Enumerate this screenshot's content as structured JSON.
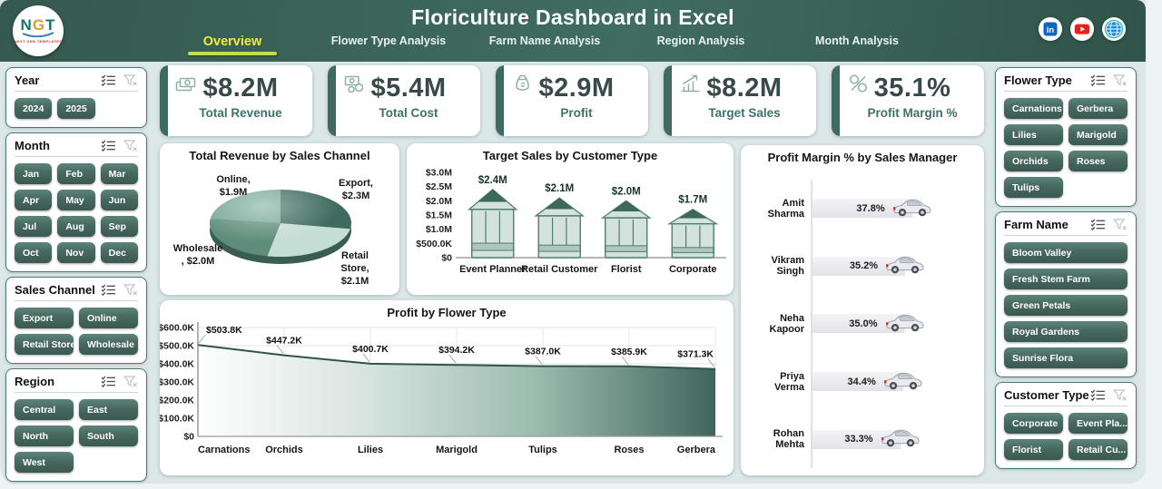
{
  "header": {
    "logo_text": "NGT",
    "logo_subtext": "NEXT GEN TEMPLATES",
    "title": "Floriculture Dashboard in Excel",
    "tabs": [
      {
        "label": "Overview",
        "active": true
      },
      {
        "label": "Flower Type Analysis",
        "active": false
      },
      {
        "label": "Farm Name Analysis",
        "active": false
      },
      {
        "label": "Region Analysis",
        "active": false
      },
      {
        "label": "Month Analysis",
        "active": false
      }
    ],
    "social": [
      {
        "icon": "linkedin-icon",
        "color": "#0a66c2"
      },
      {
        "icon": "youtube-icon",
        "color": "#e62117"
      },
      {
        "icon": "globe-icon",
        "color": "#1e88e5"
      }
    ]
  },
  "kpis": [
    {
      "icon": "revenue-icon",
      "value": "$8.2M",
      "label": "Total Revenue"
    },
    {
      "icon": "cost-icon",
      "value": "$5.4M",
      "label": "Total Cost"
    },
    {
      "icon": "profit-icon",
      "value": "$2.9M",
      "label": "Profit"
    },
    {
      "icon": "target-sales-icon",
      "value": "$8.2M",
      "label": "Target Sales"
    },
    {
      "icon": "profit-margin-icon",
      "value": "35.1%",
      "label": "Profit Margin %"
    }
  ],
  "slicers_left": [
    {
      "title": "Year",
      "columns": 3,
      "items": [
        "2024",
        "2025"
      ]
    },
    {
      "title": "Month",
      "columns": 3,
      "items": [
        "Jan",
        "Feb",
        "Mar",
        "Apr",
        "May",
        "Jun",
        "Jul",
        "Aug",
        "Sep",
        "Oct",
        "Nov",
        "Dec"
      ]
    },
    {
      "title": "Sales Channel",
      "columns": 2,
      "items": [
        "Export",
        "Online",
        "Retail Store",
        "Wholesale"
      ]
    },
    {
      "title": "Region",
      "columns": 2,
      "items": [
        "Central",
        "East",
        "North",
        "South",
        "West"
      ]
    }
  ],
  "slicers_right": [
    {
      "title": "Flower Type",
      "columns": 2,
      "items": [
        "Carnations",
        "Gerbera",
        "Lilies",
        "Marigold",
        "Orchids",
        "Roses",
        "Tulips"
      ]
    },
    {
      "title": "Farm Name",
      "columns": 1,
      "items": [
        "Bloom Valley",
        "Fresh Stem Farm",
        "Green Petals",
        "Royal Gardens",
        "Sunrise Flora"
      ]
    },
    {
      "title": "Customer Type",
      "columns": 2,
      "items": [
        "Corporate",
        "Event Pla...",
        "Florist",
        "Retail Cu..."
      ]
    }
  ],
  "chart_data": [
    {
      "type": "pie",
      "title": "Total Revenue by Sales Channel",
      "unit": "$M",
      "start_at_top_clockwise": true,
      "slices": [
        {
          "name": "Export",
          "value": 2.3,
          "label_lines": [
            "Export,",
            "$2.3M"
          ],
          "color": "#3f6b5e"
        },
        {
          "name": "Retail Store",
          "value": 2.1,
          "label_lines": [
            "Retail",
            "Store,",
            "$2.1M"
          ],
          "color": "#c5ded5"
        },
        {
          "name": "Wholesale",
          "value": 2.0,
          "label_lines": [
            "Wholesale",
            ", $2.0M"
          ],
          "color": "#5f8d7c"
        },
        {
          "name": "Online",
          "value": 1.9,
          "label_lines": [
            "Online,",
            "$1.9M"
          ],
          "color": "#74a796"
        }
      ]
    },
    {
      "type": "bar",
      "bar_style": "greenhouse-pictogram",
      "title": "Target Sales by Customer Type",
      "categories": [
        "Event Planner",
        "Retail Customer",
        "Florist",
        "Corporate"
      ],
      "values": [
        2.4,
        2.1,
        2.0,
        1.7
      ],
      "data_labels": [
        "$2.4M",
        "$2.1M",
        "$2.0M",
        "$1.7M"
      ],
      "ylim": [
        0,
        3
      ],
      "ytick_values": [
        0,
        0.5,
        1,
        1.5,
        2,
        2.5,
        3
      ],
      "ytick_labels": [
        "$0",
        "$500.0K",
        "$1.0M",
        "$1.5M",
        "$2.0M",
        "$2.5M",
        "$3.0M"
      ]
    },
    {
      "type": "bar",
      "orientation": "horizontal",
      "bar_style": "car-pictogram",
      "title": "Profit Margin % by Sales Manager",
      "categories": [
        "Amit Sharma",
        "Vikram Singh",
        "Neha Kapoor",
        "Priya Verma",
        "Rohan Mehta"
      ],
      "values": [
        37.8,
        35.2,
        35.0,
        34.4,
        33.3
      ],
      "data_labels": [
        "37.8%",
        "35.2%",
        "35.0%",
        "34.4%",
        "33.3%"
      ],
      "xlim": [
        0,
        40
      ]
    },
    {
      "type": "area",
      "title": "Profit by Flower Type",
      "categories": [
        "Carnations",
        "Orchids",
        "Lilies",
        "Marigold",
        "Tulips",
        "Roses",
        "Gerbera"
      ],
      "values": [
        503.8,
        447.2,
        400.7,
        394.2,
        387.0,
        385.9,
        371.3
      ],
      "data_labels": [
        "$503.8K",
        "$447.2K",
        "$400.7K",
        "$394.2K",
        "$387.0K",
        "$385.9K",
        "$371.3K"
      ],
      "unit": "K",
      "grid": true,
      "ylim": [
        0,
        600
      ],
      "ytick_values": [
        0,
        100,
        200,
        300,
        400,
        500,
        600
      ],
      "ytick_labels": [
        "$0",
        "$100.0K",
        "$200.0K",
        "$300.0K",
        "$400.0K",
        "$500.0K",
        "$600.0K"
      ]
    }
  ],
  "colors": {
    "header_teal": "#3a6158",
    "accent": "#3e6a60",
    "slicer_button": "#47695f",
    "background": "#dce7e8",
    "kpi_value": "#374a48",
    "kpi_label": "#3e7169",
    "tab_active_text": "#f2ea3e",
    "tab_underline": "#c6dc4a",
    "greenhouse_body": "#d3e2dd",
    "greenhouse_line": "#4f7d6e",
    "greenhouse_roof": "#3d685b",
    "manager_bar": "#e9e9ee",
    "area_line": "#2f544b"
  }
}
